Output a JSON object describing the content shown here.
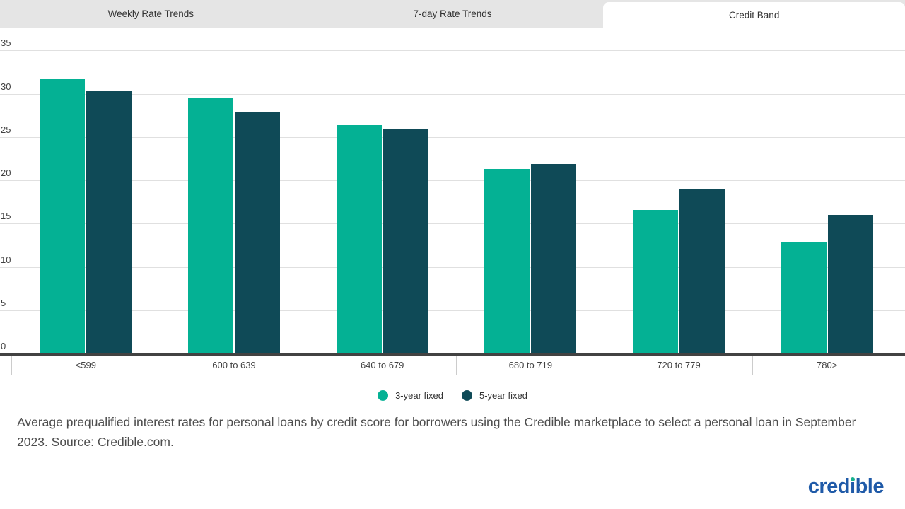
{
  "tabs": {
    "items": [
      {
        "label": "Weekly Rate Trends",
        "active": false
      },
      {
        "label": "7-day Rate Trends",
        "active": false
      },
      {
        "label": "Credit Band",
        "active": true
      }
    ]
  },
  "chart_data": {
    "type": "bar",
    "title": "",
    "categories": [
      "<599",
      "600 to 639",
      "640 to 679",
      "680 to 719",
      "720 to 779",
      "780>"
    ],
    "series": [
      {
        "name": "3-year fixed",
        "color": "#04b194",
        "values": [
          31.7,
          29.5,
          26.4,
          21.3,
          16.6,
          12.8
        ]
      },
      {
        "name": "5-year fixed",
        "color": "#0f4a57",
        "values": [
          30.3,
          27.9,
          26.0,
          21.9,
          19.0,
          16.0
        ]
      }
    ],
    "xlabel": "",
    "ylabel": "",
    "ylim": [
      0,
      37
    ],
    "yticks": [
      0,
      5,
      10,
      15,
      20,
      25,
      30,
      35
    ],
    "grid": "horizontal",
    "legend_position": "bottom"
  },
  "caption": {
    "text": "Average prequalified interest rates for personal loans by credit score for borrowers using the Credible marketplace to select a personal loan in September 2023. Source: ",
    "link_text": "Credible.com",
    "suffix": "."
  },
  "logo": {
    "pre": "cred",
    "i": "ı",
    "post": "ble"
  },
  "colors": {
    "series_teal": "#04b194",
    "series_dark_teal": "#0f4a57",
    "tab_bar_bg": "#e5e5e5",
    "active_tab_bg": "#ffffff",
    "axis_line": "#424242",
    "gridline": "#e0e0e0",
    "logo_blue": "#1f5aa8",
    "logo_dot_green": "#17b18c"
  }
}
